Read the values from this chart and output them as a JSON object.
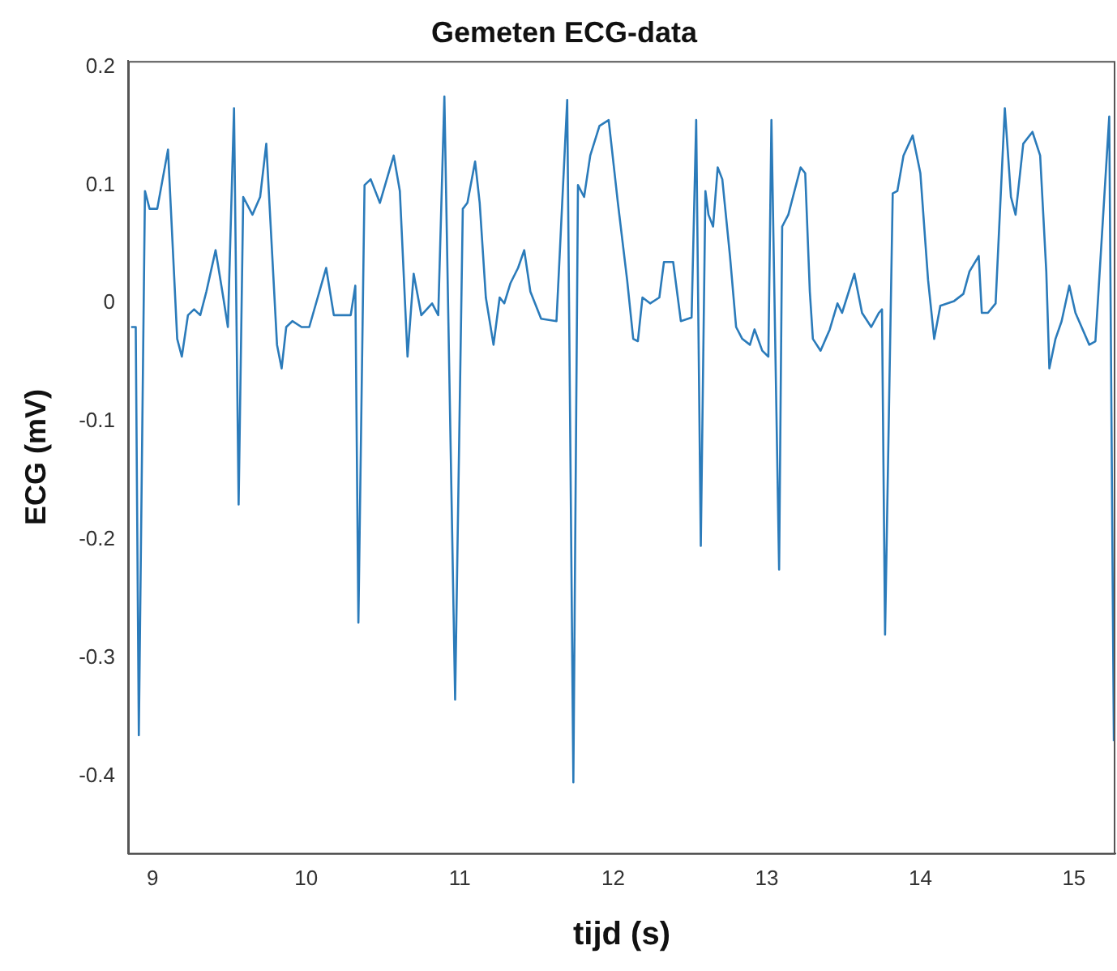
{
  "chart_data": {
    "type": "line",
    "title": "Gemeten ECG-data",
    "xlabel": "tijd (s)",
    "ylabel": "ECG (mV)",
    "x": [
      8.86,
      8.89,
      8.91,
      8.95,
      8.98,
      9.03,
      9.1,
      9.16,
      9.19,
      9.23,
      9.27,
      9.31,
      9.35,
      9.41,
      9.46,
      9.49,
      9.53,
      9.56,
      9.59,
      9.65,
      9.7,
      9.74,
      9.81,
      9.84,
      9.87,
      9.91,
      9.97,
      10.02,
      10.13,
      10.18,
      10.29,
      10.32,
      10.34,
      10.38,
      10.42,
      10.48,
      10.57,
      10.61,
      10.66,
      10.7,
      10.75,
      10.82,
      10.86,
      10.9,
      10.97,
      11.02,
      11.05,
      11.1,
      11.13,
      11.17,
      11.22,
      11.26,
      11.29,
      11.33,
      11.38,
      11.42,
      11.46,
      11.53,
      11.63,
      11.7,
      11.74,
      11.77,
      11.81,
      11.85,
      11.91,
      11.97,
      12.03,
      12.09,
      12.13,
      12.16,
      12.19,
      12.24,
      12.3,
      12.33,
      12.39,
      12.44,
      12.51,
      12.54,
      12.57,
      12.6,
      12.62,
      12.65,
      12.68,
      12.71,
      12.76,
      12.8,
      12.84,
      12.89,
      12.92,
      12.97,
      13.01,
      13.03,
      13.08,
      13.1,
      13.14,
      13.22,
      13.25,
      13.28,
      13.3,
      13.35,
      13.41,
      13.46,
      13.49,
      13.57,
      13.62,
      13.68,
      13.73,
      13.75,
      13.77,
      13.82,
      13.85,
      13.89,
      13.95,
      14.0,
      14.05,
      14.09,
      14.13,
      14.22,
      14.28,
      14.32,
      14.38,
      14.4,
      14.44,
      14.49,
      14.55,
      14.59,
      14.62,
      14.67,
      14.73,
      14.78,
      14.82,
      14.84,
      14.88,
      14.92,
      14.97,
      15.01,
      15.05,
      15.1,
      15.14,
      15.23,
      15.26
    ],
    "series": [
      {
        "color": "#2b7bba",
        "values": [
          -0.02,
          -0.02,
          -0.365,
          0.095,
          0.08,
          0.08,
          0.13,
          -0.03,
          -0.045,
          -0.01,
          -0.005,
          -0.01,
          0.01,
          0.045,
          0.005,
          -0.02,
          0.165,
          -0.17,
          0.09,
          0.075,
          0.09,
          0.135,
          -0.035,
          -0.055,
          -0.02,
          -0.015,
          -0.02,
          -0.02,
          0.03,
          -0.01,
          -0.01,
          0.015,
          -0.27,
          0.1,
          0.105,
          0.085,
          0.125,
          0.095,
          -0.045,
          0.025,
          -0.01,
          0,
          -0.01,
          0.175,
          -0.335,
          0.08,
          0.085,
          0.12,
          0.085,
          0.005,
          -0.035,
          0.005,
          0,
          0.017,
          0.03,
          0.045,
          0.01,
          -0.013,
          -0.015,
          0.172,
          -0.405,
          0.1,
          0.09,
          0.125,
          0.15,
          0.155,
          0.085,
          0.02,
          -0.03,
          -0.032,
          0.005,
          0,
          0.005,
          0.035,
          0.035,
          -0.015,
          -0.012,
          0.155,
          -0.205,
          0.095,
          0.075,
          0.065,
          0.115,
          0.105,
          0.04,
          -0.02,
          -0.03,
          -0.035,
          -0.022,
          -0.04,
          -0.045,
          0.155,
          -0.225,
          0.065,
          0.075,
          0.115,
          0.11,
          0.01,
          -0.03,
          -0.04,
          -0.022,
          0,
          -0.008,
          0.025,
          -0.008,
          -0.02,
          -0.008,
          -0.005,
          -0.28,
          0.093,
          0.095,
          0.125,
          0.142,
          0.11,
          0.02,
          -0.03,
          -0.002,
          0.002,
          0.008,
          0.027,
          0.04,
          -0.008,
          -0.008,
          0,
          0.165,
          0.09,
          0.075,
          0.135,
          0.145,
          0.125,
          0.027,
          -0.055,
          -0.03,
          -0.015,
          0.015,
          -0.008,
          -0.02,
          -0.035,
          -0.032,
          0.158,
          -0.37
        ]
      }
    ],
    "xlim": [
      8.84,
      15.27
    ],
    "ylim": [
      -0.465,
      0.205
    ],
    "xticks": [
      9,
      10,
      11,
      12,
      13,
      14,
      15
    ],
    "yticks": [
      {
        "value": -0.4,
        "label": "-0.4"
      },
      {
        "value": -0.3,
        "label": "-0.3"
      },
      {
        "value": -0.2,
        "label": "-0.2"
      },
      {
        "value": -0.1,
        "label": "-0.1"
      },
      0,
      {
        "value": 0.1,
        "label": "0.1"
      },
      {
        "value": 0.2,
        "label": "0.2"
      }
    ]
  }
}
